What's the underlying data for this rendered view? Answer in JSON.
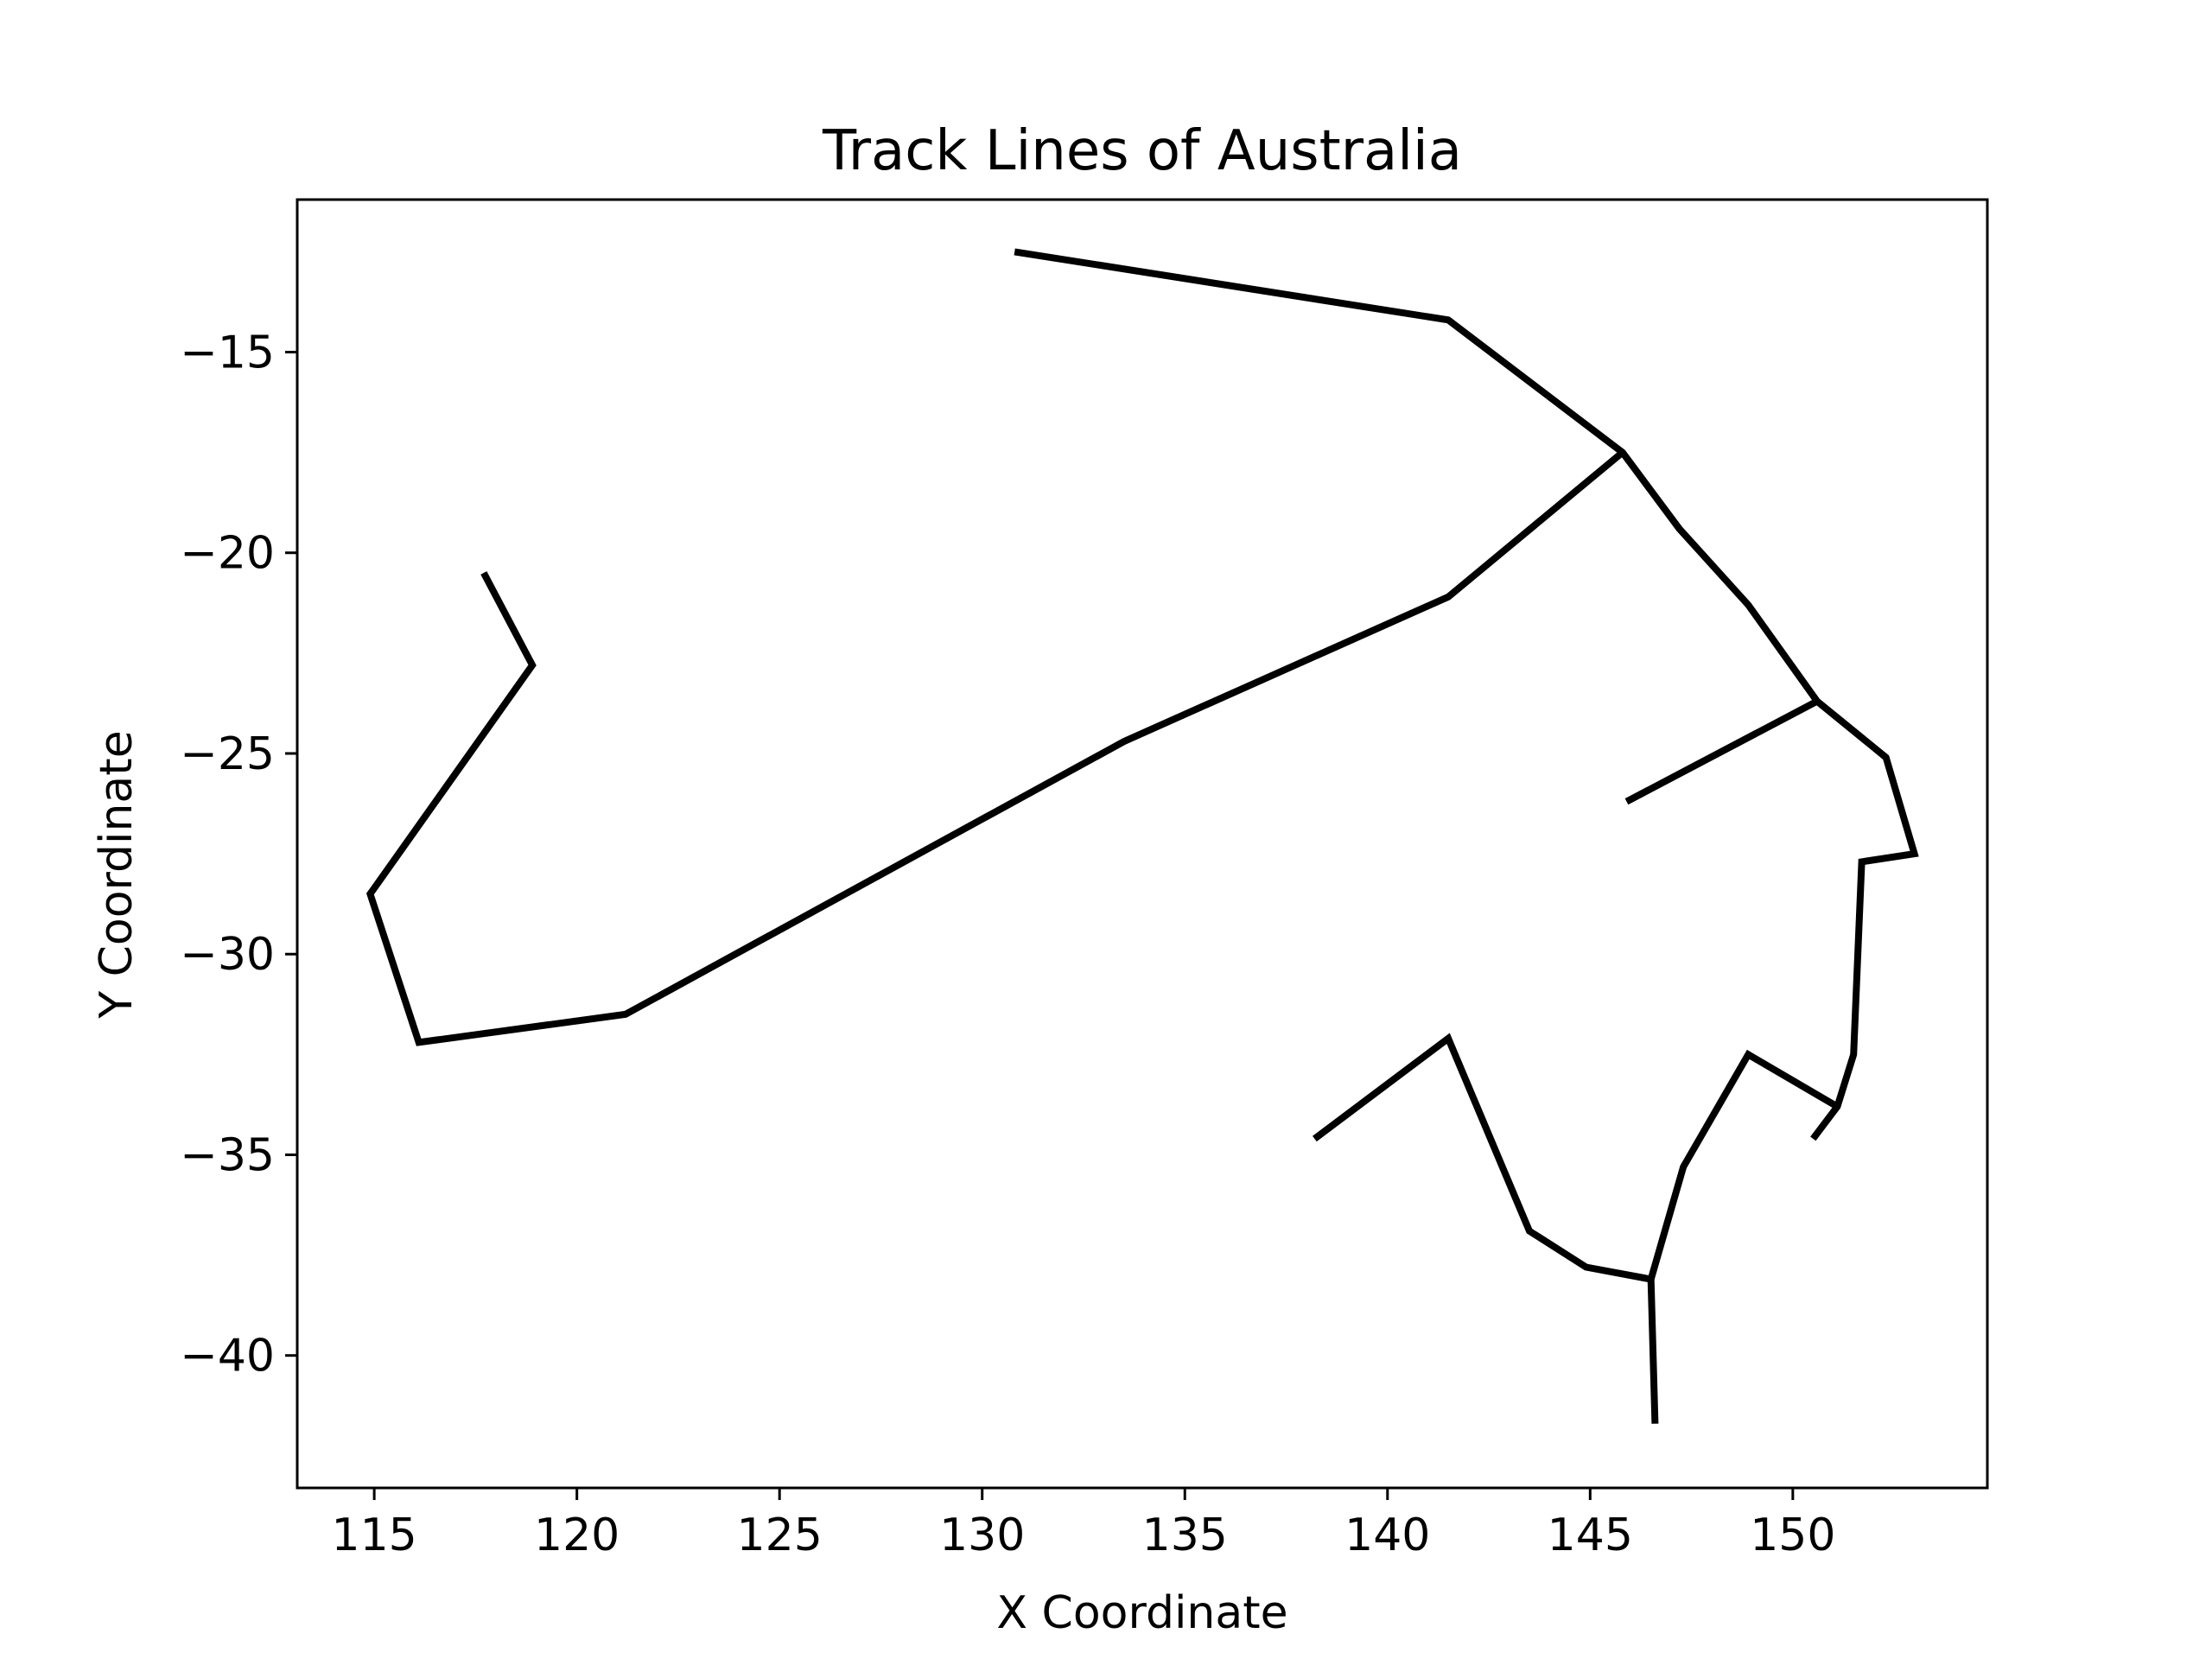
{
  "chart_data": {
    "type": "line",
    "title": "Track Lines of Australia",
    "xlabel": "X Coordinate",
    "ylabel": "Y Coordinate",
    "xlim": [
      113.1,
      154.8
    ],
    "ylim": [
      -43.3,
      -11.2
    ],
    "xticks": [
      115,
      120,
      125,
      130,
      135,
      140,
      145,
      150
    ],
    "yticks": [
      -15,
      -20,
      -25,
      -30,
      -35,
      -40
    ],
    "xtick_labels": [
      "115",
      "120",
      "125",
      "130",
      "135",
      "140",
      "145",
      "150"
    ],
    "ytick_labels": [
      "−15",
      "−20",
      "−25",
      "−30",
      "−35",
      "−40"
    ],
    "grid": false,
    "legend": false,
    "line_color": "#000000",
    "series": [
      {
        "points": [
          [
            130.8,
            -12.5
          ],
          [
            141.5,
            -14.2
          ],
          [
            145.8,
            -17.5
          ],
          [
            147.2,
            -19.4
          ],
          [
            148.9,
            -21.3
          ],
          [
            150.6,
            -23.7
          ],
          [
            152.3,
            -25.1
          ],
          [
            153.0,
            -27.5
          ],
          [
            151.7,
            -27.7
          ],
          [
            151.5,
            -32.5
          ],
          [
            151.1,
            -33.8
          ],
          [
            150.5,
            -34.6
          ]
        ]
      },
      {
        "points": [
          [
            117.7,
            -20.5
          ],
          [
            118.9,
            -22.8
          ],
          [
            114.9,
            -28.5
          ],
          [
            116.1,
            -32.2
          ],
          [
            121.2,
            -31.5
          ],
          [
            133.5,
            -24.7
          ],
          [
            141.5,
            -21.1
          ],
          [
            145.8,
            -17.5
          ]
        ]
      },
      {
        "points": [
          [
            150.6,
            -23.7
          ],
          [
            145.9,
            -26.2
          ]
        ]
      },
      {
        "points": [
          [
            138.2,
            -34.6
          ],
          [
            141.5,
            -32.1
          ],
          [
            143.5,
            -36.9
          ],
          [
            144.9,
            -37.8
          ],
          [
            146.5,
            -38.1
          ],
          [
            147.3,
            -35.3
          ],
          [
            148.9,
            -32.5
          ],
          [
            151.1,
            -33.8
          ]
        ]
      },
      {
        "points": [
          [
            146.5,
            -38.1
          ],
          [
            146.6,
            -41.7
          ]
        ]
      }
    ]
  }
}
